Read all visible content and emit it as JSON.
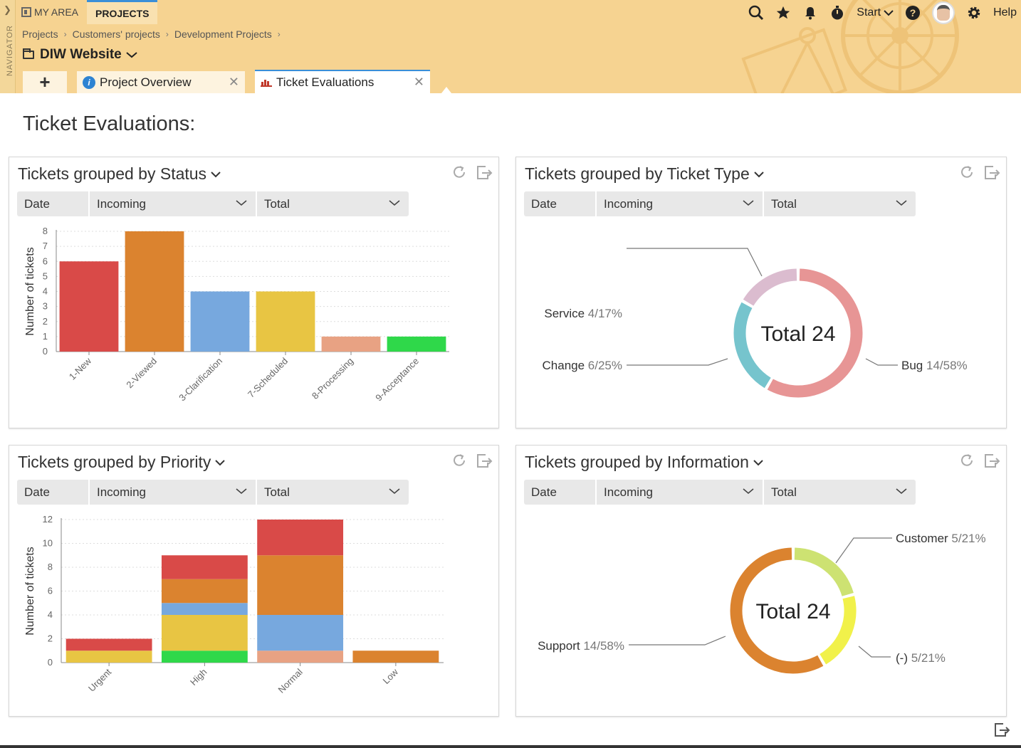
{
  "navigator": {
    "label": "NAVIGATOR"
  },
  "topnav": {
    "my_area": "MY AREA",
    "projects": "PROJECTS"
  },
  "toolbar": {
    "start_label": "Start",
    "help_label": "Help"
  },
  "breadcrumb": [
    "Projects",
    "Customers' projects",
    "Development Projects"
  ],
  "project": {
    "title": "DIW Website"
  },
  "tabs": [
    {
      "label": "Project Overview",
      "icon": "info-icon"
    },
    {
      "label": "Ticket Evaluations",
      "icon": "bar-chart-icon",
      "active": true
    }
  ],
  "page": {
    "title": "Ticket Evaluations:"
  },
  "cards": [
    {
      "title": "Tickets grouped by Status",
      "filters": {
        "date": "Date",
        "mode": "Incoming",
        "agg": "Total"
      }
    },
    {
      "title": "Tickets grouped by Ticket Type",
      "filters": {
        "date": "Date",
        "mode": "Incoming",
        "agg": "Total"
      }
    },
    {
      "title": "Tickets grouped by Priority",
      "filters": {
        "date": "Date",
        "mode": "Incoming",
        "agg": "Total"
      }
    },
    {
      "title": "Tickets grouped by Information",
      "filters": {
        "date": "Date",
        "mode": "Incoming",
        "agg": "Total"
      }
    }
  ],
  "colors": {
    "red": "#d94a48",
    "orange": "#db832f",
    "blue": "#77a8de",
    "yellow": "#e8c543",
    "salmon": "#e8a283",
    "green": "#2fd84a",
    "pink": "#e79595",
    "teal": "#76c4cd",
    "mauve": "#dbbccf",
    "lime": "#cde272",
    "lightyellow": "#f1f14a"
  },
  "chart_data": [
    {
      "type": "bar",
      "title": "Tickets grouped by Status",
      "ylabel": "Number of tickets",
      "ylim": [
        0,
        8
      ],
      "yticks": [
        0,
        1,
        2,
        3,
        4,
        5,
        6,
        7,
        8
      ],
      "categories": [
        "1-New",
        "2-Viewed",
        "3-Clarification",
        "7-Scheduled",
        "8-Processing",
        "9-Acceptance"
      ],
      "values": [
        6,
        8,
        4,
        4,
        1,
        1
      ],
      "bar_colors": [
        "#d94a48",
        "#db832f",
        "#77a8de",
        "#e8c543",
        "#e8a283",
        "#2fd84a"
      ]
    },
    {
      "type": "pie",
      "title": "Tickets grouped by Ticket Type",
      "center_label": "Total 24",
      "slices": [
        {
          "name": "Bug",
          "value": 14,
          "label": "14/58%",
          "color": "#e79595"
        },
        {
          "name": "Change",
          "value": 6,
          "label": "6/25%",
          "color": "#76c4cd"
        },
        {
          "name": "Service",
          "value": 4,
          "label": "4/17%",
          "color": "#dbbccf"
        }
      ]
    },
    {
      "type": "bar",
      "stacked": true,
      "title": "Tickets grouped by Priority",
      "ylabel": "Number of tickets",
      "ylim": [
        0,
        12
      ],
      "yticks": [
        0,
        2,
        4,
        6,
        8,
        10,
        12
      ],
      "categories": [
        "Urgent",
        "High",
        "Normal",
        "Low"
      ],
      "series": [
        {
          "color": "#2fd84a",
          "values": [
            0,
            1,
            0,
            0
          ]
        },
        {
          "color": "#e8a283",
          "values": [
            0,
            0,
            1,
            0
          ]
        },
        {
          "color": "#e8c543",
          "values": [
            1,
            3,
            0,
            0
          ]
        },
        {
          "color": "#77a8de",
          "values": [
            0,
            1,
            3,
            0
          ]
        },
        {
          "color": "#db832f",
          "values": [
            0,
            2,
            5,
            1
          ]
        },
        {
          "color": "#d94a48",
          "values": [
            1,
            2,
            3,
            0
          ]
        }
      ]
    },
    {
      "type": "pie",
      "title": "Tickets grouped by Information",
      "center_label": "Total 24",
      "slices": [
        {
          "name": "Customer",
          "value": 5,
          "label": "5/21%",
          "color": "#cde272"
        },
        {
          "name": "(-)",
          "value": 5,
          "label": "5/21%",
          "color": "#f1f14a"
        },
        {
          "name": "Support",
          "value": 14,
          "label": "14/58%",
          "color": "#db832f"
        }
      ]
    }
  ]
}
